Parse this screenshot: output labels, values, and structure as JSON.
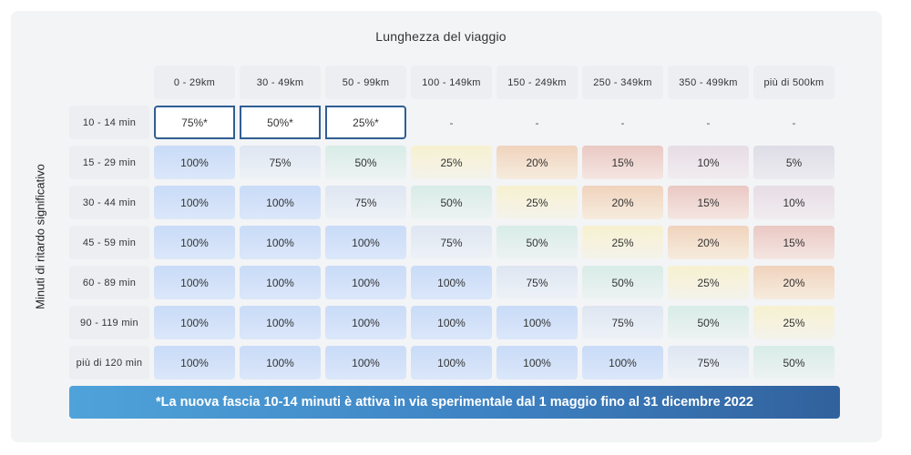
{
  "title": "Lunghezza del viaggio",
  "ylabel": "Minuti di ritardo significativo",
  "columns": [
    "0 - 29km",
    "30 - 49km",
    "50 - 99km",
    "100 - 149km",
    "150 - 249km",
    "250 - 349km",
    "350 - 499km",
    "più di 500km"
  ],
  "rows": [
    {
      "label": "10 - 14 min",
      "cells": [
        "75%*",
        "50%*",
        "25%*",
        "-",
        "-",
        "-",
        "-",
        "-"
      ]
    },
    {
      "label": "15 - 29 min",
      "cells": [
        "100%",
        "75%",
        "50%",
        "25%",
        "20%",
        "15%",
        "10%",
        "5%"
      ]
    },
    {
      "label": "30 - 44 min",
      "cells": [
        "100%",
        "100%",
        "75%",
        "50%",
        "25%",
        "20%",
        "15%",
        "10%"
      ]
    },
    {
      "label": "45 - 59 min",
      "cells": [
        "100%",
        "100%",
        "100%",
        "75%",
        "50%",
        "25%",
        "20%",
        "15%"
      ]
    },
    {
      "label": "60 - 89 min",
      "cells": [
        "100%",
        "100%",
        "100%",
        "100%",
        "75%",
        "50%",
        "25%",
        "20%"
      ]
    },
    {
      "label": "90 - 119 min",
      "cells": [
        "100%",
        "100%",
        "100%",
        "100%",
        "100%",
        "75%",
        "50%",
        "25%"
      ]
    },
    {
      "label": "più di 120 min",
      "cells": [
        "100%",
        "100%",
        "100%",
        "100%",
        "100%",
        "100%",
        "75%",
        "50%"
      ]
    }
  ],
  "note": "*La nuova fascia 10-14 minuti è attiva in via sperimentale dal 1 maggio fino al 31 dicembre 2022",
  "colors": {
    "banner_start": "#4fa3da",
    "banner_end": "#31619d",
    "highlight_border": "#2f5f93",
    "card_bg": "#f3f4f6"
  }
}
